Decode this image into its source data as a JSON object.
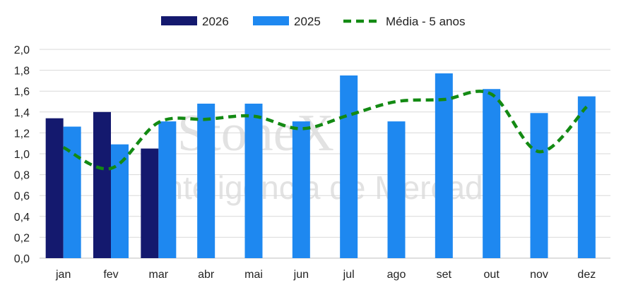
{
  "chart_data": {
    "type": "bar",
    "title": "",
    "xlabel": "",
    "ylabel": "",
    "ylim": [
      0,
      2.0
    ],
    "yticks": [
      "0,0",
      "0,2",
      "0,4",
      "0,6",
      "0,8",
      "1,0",
      "1,2",
      "1,4",
      "1,6",
      "1,8",
      "2,0"
    ],
    "grid": true,
    "legend_position": "top-center",
    "categories": [
      "jan",
      "fev",
      "mar",
      "abr",
      "mai",
      "jun",
      "jul",
      "ago",
      "set",
      "out",
      "nov",
      "dez"
    ],
    "series": [
      {
        "name": "2026",
        "type": "bar",
        "color": "#14196e",
        "values": [
          1.34,
          1.4,
          1.05,
          null,
          null,
          null,
          null,
          null,
          null,
          null,
          null,
          null
        ]
      },
      {
        "name": "2025",
        "type": "bar",
        "color": "#1e88f0",
        "values": [
          1.26,
          1.09,
          1.31,
          1.48,
          1.48,
          1.31,
          1.75,
          1.31,
          1.77,
          1.62,
          1.39,
          1.55
        ]
      },
      {
        "name": "Média - 5 anos",
        "type": "line",
        "style": "dashed",
        "color": "#138a13",
        "values": [
          1.06,
          0.86,
          1.3,
          1.33,
          1.36,
          1.24,
          1.37,
          1.5,
          1.52,
          1.57,
          1.02,
          1.45
        ]
      }
    ]
  },
  "watermark": {
    "line1": "StoneX",
    "line2": "Inteligência de Mercado"
  }
}
